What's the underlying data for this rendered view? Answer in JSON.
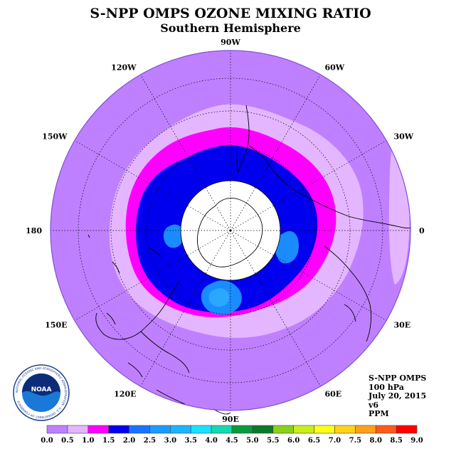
{
  "header": {
    "title": "S-NPP OMPS OZONE MIXING RATIO",
    "subtitle": "Southern Hemisphere"
  },
  "map": {
    "projection": "south-polar-stereographic",
    "longitude_labels": [
      {
        "text": "90W"
      },
      {
        "text": "60W"
      },
      {
        "text": "30W"
      },
      {
        "text": "0"
      },
      {
        "text": "30E"
      },
      {
        "text": "60E"
      },
      {
        "text": "90E"
      },
      {
        "text": "120E"
      },
      {
        "text": "150E"
      },
      {
        "text": "180"
      },
      {
        "text": "150W"
      },
      {
        "text": "120W"
      }
    ],
    "field_colors": {
      "background_0_1": "#bf80ff",
      "band_0_5": "#e3b6ff",
      "band_1_0": "#ff00ff",
      "band_1_5": "#0000ee",
      "band_2_0": "#1a8cff",
      "no_data": "#ffffff"
    }
  },
  "info": {
    "lines": [
      "S-NPP OMPS",
      "100 hPa",
      "July 20, 2015",
      "v6",
      "PPM"
    ]
  },
  "logo": {
    "text": "NOAA",
    "ring_text": "NATIONAL OCEANIC AND ATMOSPHERIC ADMINISTRATION · U.S. DEPARTMENT OF COMMERCE"
  },
  "colorbar": {
    "ticks": [
      "0.0",
      "0.5",
      "1.0",
      "1.5",
      "2.0",
      "2.5",
      "3.0",
      "3.5",
      "4.0",
      "4.5",
      "5.0",
      "5.5",
      "6.0",
      "6.5",
      "7.0",
      "7.5",
      "8.0",
      "8.5",
      "9.0"
    ],
    "colors": [
      "#bf80ff",
      "#e3b6ff",
      "#ff00ff",
      "#0000ee",
      "#1a73ff",
      "#1a9bff",
      "#1ab4ff",
      "#1ae1ff",
      "#14d9b0",
      "#0a9a3c",
      "#0a7a2a",
      "#8ad01a",
      "#c8ee1a",
      "#ffff1a",
      "#ffd21a",
      "#ffa01a",
      "#ff5a1a",
      "#ff0000",
      "#8b5a3c"
    ]
  }
}
